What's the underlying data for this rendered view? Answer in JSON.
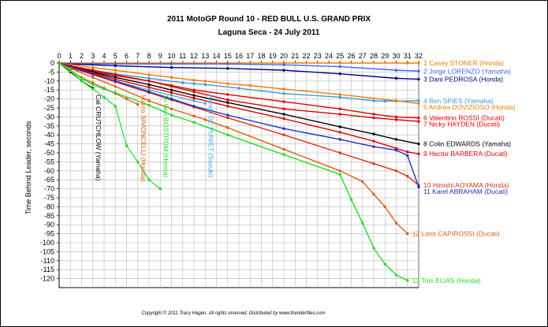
{
  "chart_data": {
    "type": "line",
    "title": "2011 MotoGP Round 10 - RED BULL U.S. GRAND PRIX",
    "subtitle": "Laguna Seca - 24 July 2011",
    "xlabel": "",
    "ylabel": "Time Behind Leader, seconds",
    "xlim": [
      0,
      32
    ],
    "ylim": [
      -125,
      0
    ],
    "x_ticks": [
      0,
      1,
      2,
      3,
      4,
      5,
      6,
      7,
      8,
      9,
      10,
      11,
      12,
      13,
      14,
      15,
      16,
      17,
      18,
      19,
      20,
      21,
      22,
      23,
      24,
      25,
      26,
      27,
      28,
      29,
      30,
      31,
      32
    ],
    "y_ticks": [
      0,
      -5,
      -10,
      -15,
      -20,
      -25,
      -30,
      -35,
      -40,
      -45,
      -50,
      -55,
      -60,
      -65,
      -70,
      -75,
      -80,
      -85,
      -90,
      -95,
      -100,
      -105,
      -110,
      -115,
      -120
    ],
    "grid": true,
    "copyright": "Copyright © 2011 Tracy Hagen. All rights reserved. Distributed by www.theriderfiles.com",
    "series": [
      {
        "name": "1 Casey STONER (Honda)",
        "color": "#f07d00",
        "x": [
          0,
          5,
          10,
          15,
          20,
          25,
          31,
          32
        ],
        "y": [
          0,
          0,
          0,
          0,
          0,
          0,
          0,
          0
        ]
      },
      {
        "name": "2 Jorge LORENZO (Yamaha)",
        "color": "#3a64ff",
        "x": [
          0,
          1,
          5,
          10,
          15,
          20,
          25,
          30,
          32
        ],
        "y": [
          0,
          -0.3,
          -0.5,
          -0.5,
          -0.5,
          -1,
          -2,
          -4,
          -4.5
        ]
      },
      {
        "name": "3 Dani PEDROSA (Honda)",
        "color": "#000080",
        "x": [
          0,
          1,
          5,
          10,
          15,
          20,
          25,
          30,
          32
        ],
        "y": [
          0,
          -0.5,
          -1.5,
          -2.5,
          -3,
          -4,
          -6,
          -8.5,
          -9
        ]
      },
      {
        "name": "4 Ben SPIES (Yamaha)",
        "color": "#3a9ade",
        "x": [
          0,
          1,
          3,
          5,
          8,
          11,
          12,
          13,
          16,
          20,
          25,
          28,
          29,
          30,
          32
        ],
        "y": [
          0,
          -1.5,
          -4,
          -6,
          -8.5,
          -11,
          -11.5,
          -12,
          -14,
          -17,
          -19,
          -21,
          -21.2,
          -21.2,
          -21
        ]
      },
      {
        "name": "5 Andrea DOVIZIOSO (Honda)",
        "color": "#f07d00",
        "x": [
          0,
          1,
          3,
          5,
          8,
          10,
          12,
          13,
          15,
          17,
          20,
          25,
          30,
          32
        ],
        "y": [
          0,
          -0.8,
          -2.5,
          -4,
          -6.5,
          -8,
          -9.5,
          -10,
          -11.5,
          -12.5,
          -14.5,
          -17.5,
          -21,
          -22.5
        ]
      },
      {
        "name": "6 Valentino ROSSI (Ducati)",
        "color": "#e00000",
        "x": [
          0,
          1,
          3,
          5,
          8,
          10,
          12,
          15,
          20,
          25,
          28,
          30,
          32
        ],
        "y": [
          0,
          -2,
          -4.5,
          -7,
          -10,
          -12.5,
          -15,
          -17.5,
          -21.5,
          -25.5,
          -28.5,
          -30,
          -30.5
        ]
      },
      {
        "name": "7 Nicky HAYDEN (Ducati)",
        "color": "#e00000",
        "x": [
          0,
          1,
          3,
          5,
          8,
          10,
          12,
          15,
          20,
          25,
          28,
          30,
          32
        ],
        "y": [
          0,
          -1.5,
          -4,
          -6.5,
          -10,
          -13,
          -16,
          -20.5,
          -25.5,
          -28.5,
          -30.5,
          -31.5,
          -32.5
        ]
      },
      {
        "name": "8 Colin EDWARDS (Yamaha)",
        "color": "#000000",
        "x": [
          0,
          1,
          3,
          5,
          8,
          10,
          12,
          15,
          20,
          25,
          28,
          30,
          32
        ],
        "y": [
          0,
          -2,
          -5,
          -8,
          -12,
          -15,
          -18,
          -22,
          -28.5,
          -35.5,
          -39.5,
          -42.5,
          -45
        ]
      },
      {
        "name": "9 Hector BARBERA (Ducati)",
        "color": "#e00000",
        "x": [
          0,
          1,
          3,
          5,
          8,
          10,
          12,
          15,
          20,
          25,
          28,
          30,
          31,
          32
        ],
        "y": [
          0,
          -2,
          -5.5,
          -9,
          -13.5,
          -16.5,
          -19.5,
          -24,
          -31,
          -38.5,
          -43.5,
          -47.5,
          -49.5,
          -50.5
        ]
      },
      {
        "name": "10 Hiroshi AOYAMA (Honda)",
        "color": "#e03010",
        "x": [
          0,
          1,
          3,
          5,
          8,
          10,
          12,
          15,
          20,
          25,
          28,
          30,
          31,
          32
        ],
        "y": [
          0,
          -2.5,
          -6.5,
          -10.5,
          -16.5,
          -20.5,
          -24.5,
          -30.5,
          -40,
          -50,
          -56,
          -60,
          -63,
          -68
        ]
      },
      {
        "name": "11 Karel ABRAHAM (Ducati)",
        "color": "#1a30c8",
        "x": [
          0,
          1,
          3,
          5,
          8,
          10,
          12,
          15,
          20,
          25,
          28,
          30,
          31,
          32
        ],
        "y": [
          0,
          -2,
          -6,
          -10,
          -16,
          -20,
          -24,
          -29,
          -36.5,
          -42.5,
          -46.5,
          -48.5,
          -51.5,
          -69
        ]
      },
      {
        "name": "12 Loris CAPIROSSI (Ducati)",
        "color": "#e05c10",
        "x": [
          0,
          1,
          3,
          5,
          8,
          10,
          12,
          13,
          15,
          20,
          25,
          27,
          28,
          29,
          30,
          31
        ],
        "y": [
          0,
          -3,
          -8,
          -13,
          -21,
          -25.5,
          -29.5,
          -31.5,
          -36,
          -48,
          -60,
          -66,
          -73,
          -80,
          -89,
          -95
        ]
      },
      {
        "name": "13 Toni ELIAS (Honda)",
        "color": "#22dd22",
        "x": [
          0,
          1,
          2,
          3,
          4,
          5,
          8,
          10,
          12,
          15,
          20,
          25,
          26,
          27,
          28,
          29,
          30,
          31
        ],
        "y": [
          0,
          -4,
          -8.5,
          -12,
          -14.5,
          -16.5,
          -23.5,
          -29,
          -33,
          -40,
          -51,
          -62,
          -76,
          -89,
          -103,
          -112,
          -118,
          -121
        ]
      }
    ],
    "crashes": [
      {
        "label": "Cal CRUTCHLOW (Yamaha)",
        "color": "#000000",
        "x": [
          0,
          1,
          2,
          3
        ],
        "y": [
          0,
          -5,
          -10,
          -14
        ]
      },
      {
        "label": "Marco SIMONCELLI (Honda)",
        "color": "#e05c10",
        "x": [
          0,
          1,
          2,
          3,
          4,
          5,
          6,
          7
        ],
        "y": [
          0,
          -4,
          -8,
          -11,
          -14,
          -17,
          -20,
          -23
        ]
      },
      {
        "label": "Randy DE PUNIET (Suzuki)",
        "color": "#3aa8d8",
        "x": [
          0,
          1,
          3,
          5,
          8,
          10,
          12,
          13
        ],
        "y": [
          0,
          -2.5,
          -6.5,
          -10,
          -15,
          -18,
          -21,
          -22.5
        ]
      },
      {
        "label": "15 Ben BOSTROM (Honda)",
        "color": "#22dd22",
        "x": [
          0,
          1,
          2,
          3,
          4,
          5,
          6,
          7,
          8,
          9
        ],
        "y": [
          0,
          -4.5,
          -10,
          -14.5,
          -19,
          -24,
          -46,
          -55,
          -65,
          -70
        ]
      }
    ]
  }
}
